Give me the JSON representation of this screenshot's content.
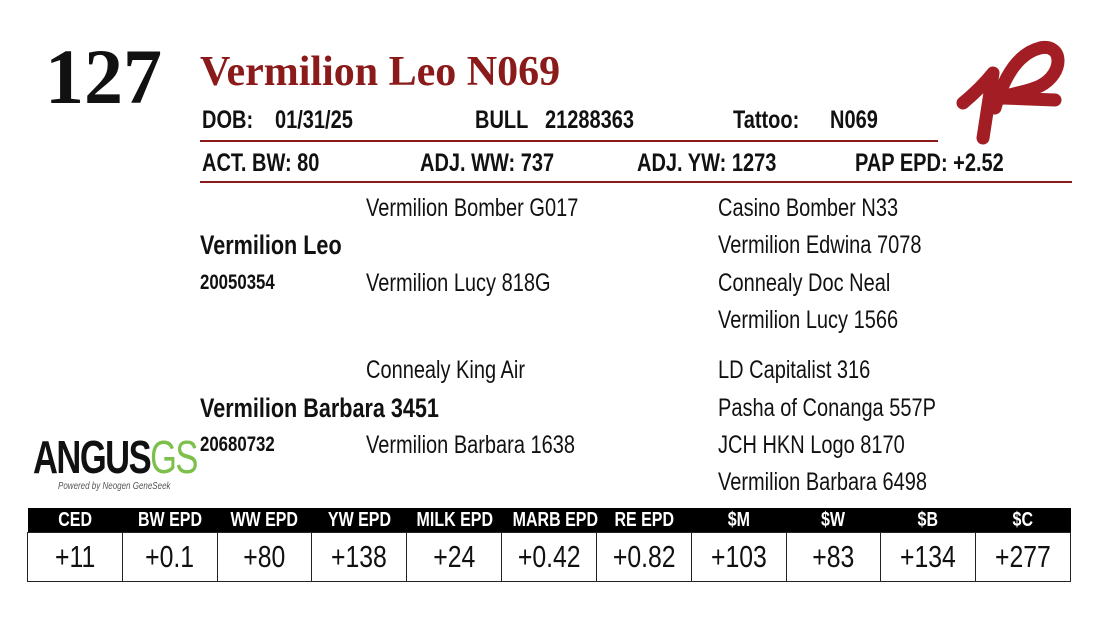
{
  "lot": "127",
  "name": "Vermilion Leo N069",
  "id_row": {
    "dob_label": "DOB:",
    "dob": "01/31/25",
    "sex": "BULL",
    "registration": "21288363",
    "tattoo_label": "Tattoo:",
    "tattoo": "N069"
  },
  "stats_row": [
    "ACT. BW: 80",
    "ADJ. WW: 737",
    "ADJ. YW: 1273",
    "PAP EPD: +2.52"
  ],
  "pedigree": {
    "sire": {
      "name": "Vermilion Leo",
      "registration": "20050354",
      "sire": "Vermilion Bomber G017",
      "dam": "Vermilion Lucy 818G",
      "grandparents": [
        "Casino Bomber N33",
        "Vermilion Edwina 7078",
        "Connealy Doc Neal",
        "Vermilion Lucy 1566"
      ]
    },
    "dam": {
      "name": "Vermilion Barbara 3451",
      "registration": "20680732",
      "sire": "Connealy King Air",
      "dam": "Vermilion Barbara 1638",
      "grandparents": [
        "LD Capitalist 316",
        "Pasha of Conanga 557P",
        "JCH HKN Logo 8170",
        "Vermilion Barbara 6498"
      ]
    }
  },
  "logo": {
    "word": "ANGUS",
    "suffix": "GS",
    "tagline": "Powered by Neogen GeneSeek"
  },
  "epd_table": {
    "headers": [
      "CED",
      "BW EPD",
      "WW EPD",
      "YW EPD",
      "MILK EPD",
      "MARB EPD",
      "RE EPD",
      "$M",
      "$W",
      "$B",
      "$C"
    ],
    "values": [
      "+11",
      "+0.1",
      "+80",
      "+138",
      "+24",
      "+0.42",
      "+0.82",
      "+103",
      "+83",
      "+134",
      "+277"
    ]
  }
}
